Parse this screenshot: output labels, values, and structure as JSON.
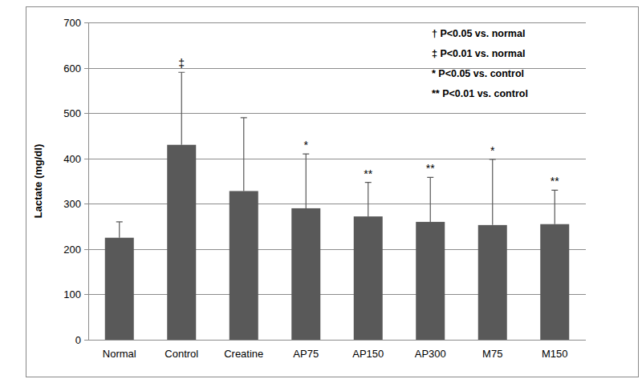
{
  "chart_data": {
    "type": "bar",
    "y_label": "Lactate (mg/dl)",
    "categories": [
      "Normal",
      "Control",
      "Creatine",
      "AP75",
      "AP150",
      "AP300",
      "M75",
      "M150"
    ],
    "values": [
      225,
      430,
      328,
      290,
      272,
      260,
      253,
      255
    ],
    "errors": [
      35,
      160,
      162,
      120,
      75,
      98,
      145,
      75
    ],
    "markers": [
      null,
      "‡",
      null,
      "*",
      "**",
      "**",
      "*",
      "**"
    ],
    "notes": [
      "† P<0.05 vs. normal",
      "‡ P<0.01 vs. normal",
      "* P<0.05 vs. control",
      "** P<0.01 vs. control"
    ],
    "color": "#595959",
    "ylim": [
      0,
      700
    ],
    "yticks": [
      0,
      100,
      200,
      300,
      400,
      500,
      600,
      700
    ],
    "grid": true
  }
}
